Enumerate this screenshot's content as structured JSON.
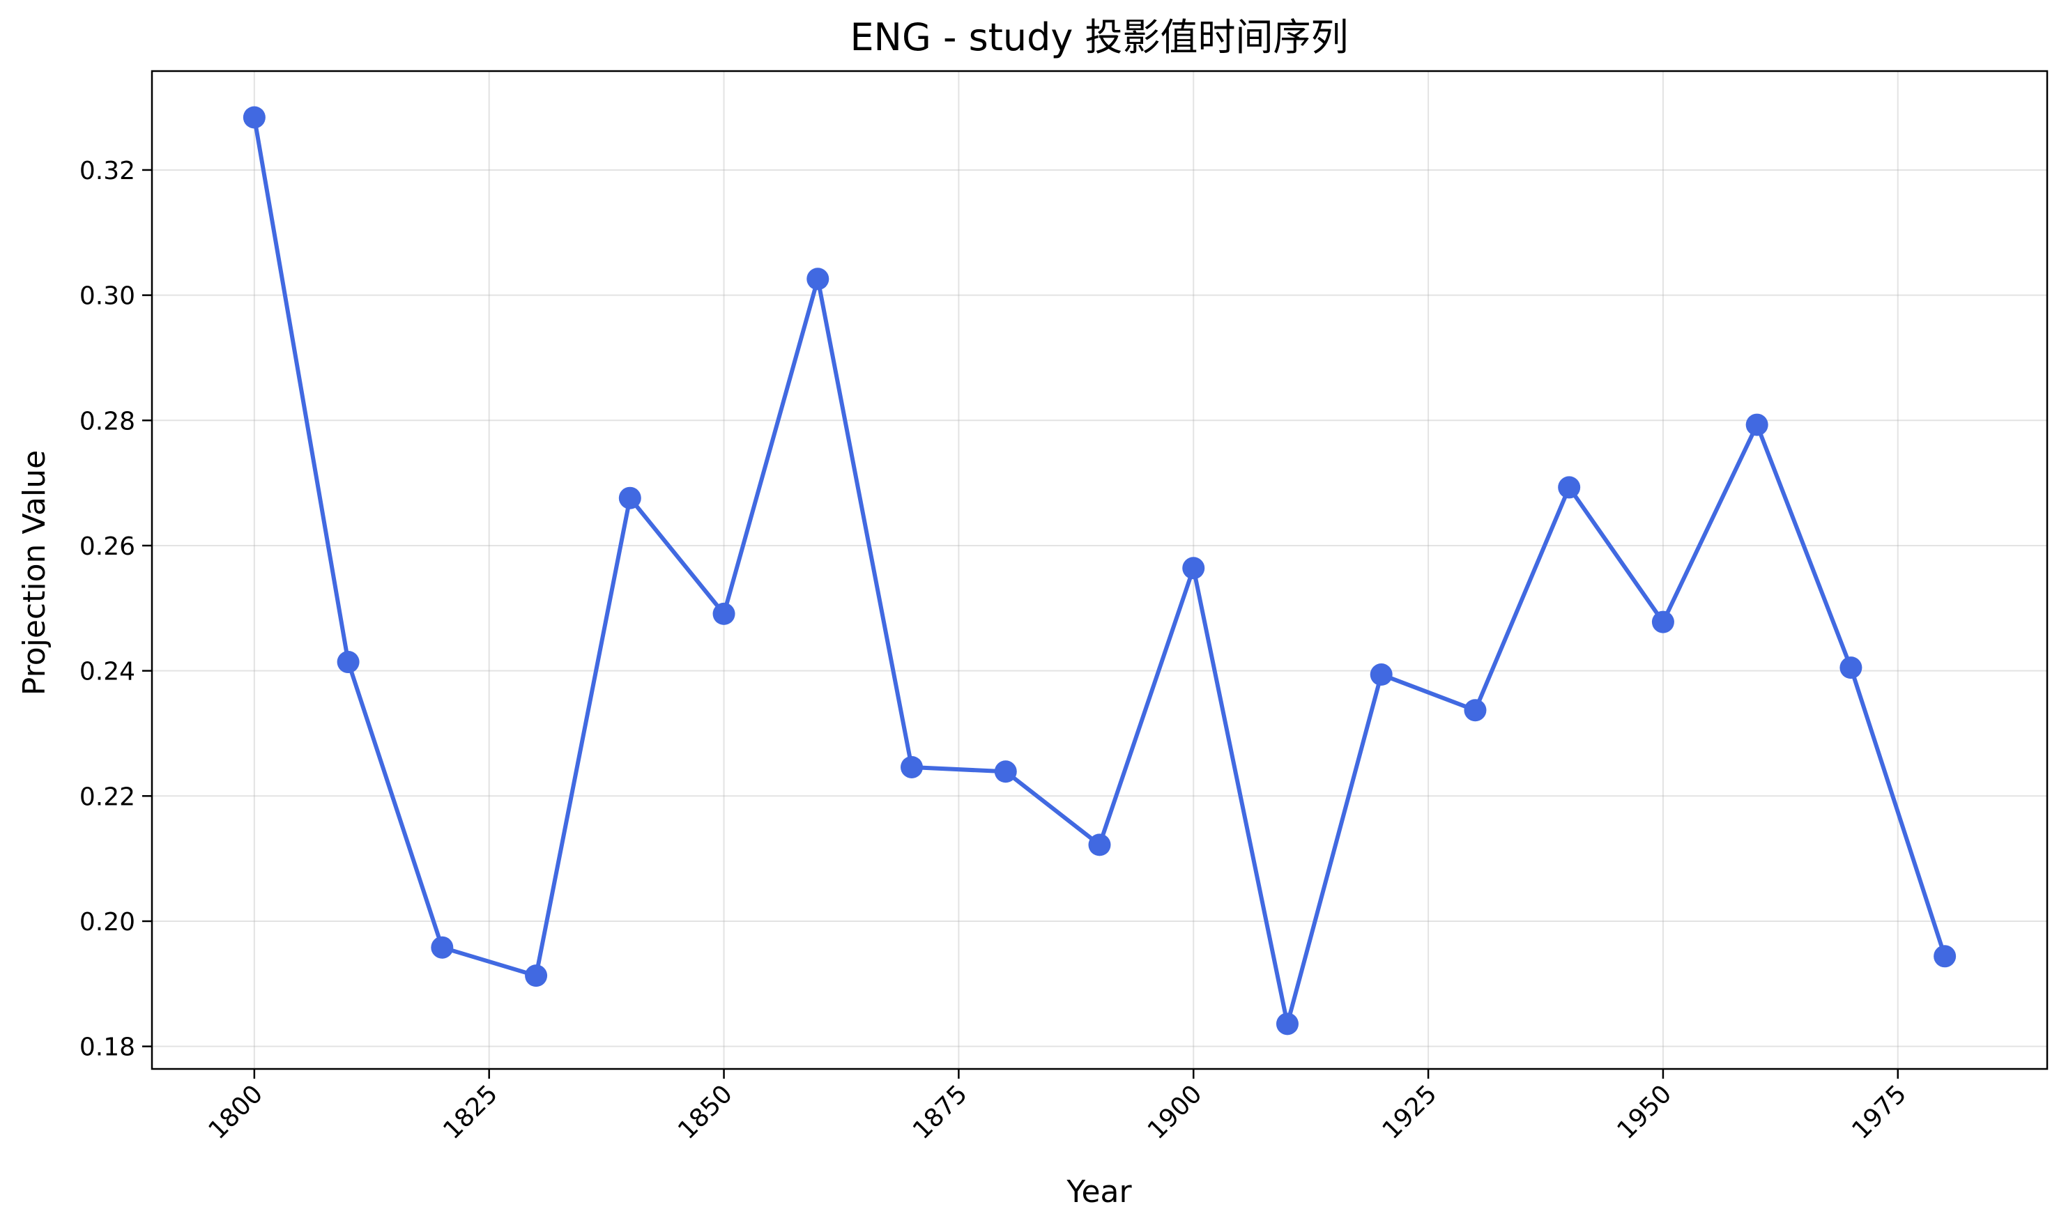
{
  "chart_data": {
    "type": "line",
    "title": "ENG - study 投影值时间序列",
    "xlabel": "Year",
    "ylabel": "Projection Value",
    "xlim": [
      1789.1,
      1990.9
    ],
    "ylim": [
      0.1764,
      0.3358
    ],
    "x_ticks": [
      1800,
      1825,
      1850,
      1875,
      1900,
      1925,
      1950,
      1975
    ],
    "y_ticks": [
      0.18,
      0.2,
      0.22,
      0.24,
      0.26,
      0.28,
      0.3,
      0.32
    ],
    "grid": true,
    "legend": "none",
    "color": "#4169e1",
    "x": [
      1800,
      1810,
      1820,
      1830,
      1840,
      1850,
      1860,
      1870,
      1880,
      1890,
      1900,
      1910,
      1920,
      1930,
      1940,
      1950,
      1960,
      1970,
      1980
    ],
    "y": [
      0.3284,
      0.2414,
      0.1958,
      0.1913,
      0.2676,
      0.2491,
      0.3026,
      0.2246,
      0.2239,
      0.2122,
      0.2564,
      0.1836,
      0.2394,
      0.2337,
      0.2693,
      0.2478,
      0.2793,
      0.2405,
      0.1944
    ]
  }
}
